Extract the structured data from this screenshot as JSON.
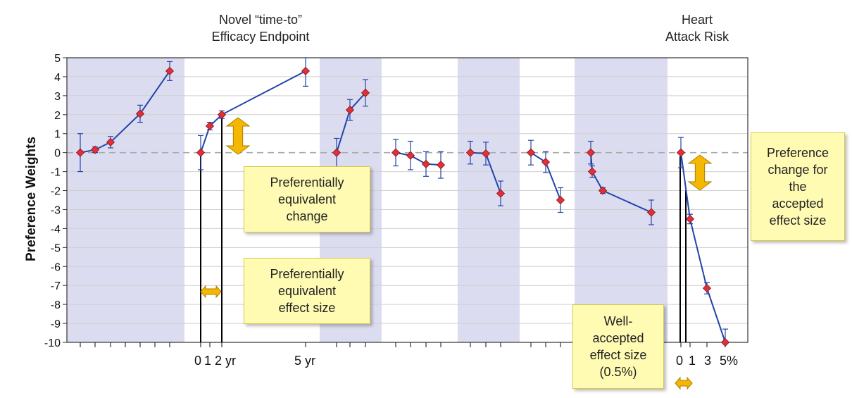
{
  "headers": {
    "efficacy": [
      "Novel “time-to”",
      "Efficacy Endpoint"
    ],
    "heart": [
      "Heart",
      "Attack Risk"
    ]
  },
  "callouts": {
    "equiv_change": [
      "Preferentially",
      "equivalent",
      "change"
    ],
    "equiv_effect": [
      "Preferentially",
      "equivalent",
      "effect size"
    ],
    "well_accepted": [
      "Well-",
      "accepted",
      "effect size",
      "(0.5%)"
    ],
    "pref_change_accepted": [
      "Preference",
      "change for",
      "the",
      "accepted",
      "effect size"
    ]
  },
  "colors": {
    "line": "#2244aa",
    "marker": "#e0303a",
    "band": "#dcdcf0",
    "arrow": "#f5b800",
    "callout_bg": "#fffbb3"
  },
  "chart_data": {
    "type": "line",
    "ylabel": "Preference Weights",
    "ylim": [
      -10,
      5
    ],
    "yticks": [
      5,
      4,
      3,
      2,
      1,
      0,
      -1,
      -2,
      -3,
      -4,
      -5,
      -6,
      -7,
      -8,
      -9,
      -10
    ],
    "grid": true,
    "zero_line": "dashed",
    "xtick_labels": {
      "efficacy": [
        "0",
        "1",
        "2 yr",
        "5 yr"
      ],
      "heart": [
        "0",
        "1",
        "3",
        "5%"
      ]
    },
    "series": [
      {
        "values": [
          0.0,
          0.15,
          0.55,
          2.05,
          4.3
        ],
        "errors": [
          1.0,
          0.15,
          0.3,
          0.45,
          0.5
        ]
      },
      {
        "values": [
          0.0,
          1.4,
          2.0,
          4.3
        ],
        "errors": [
          0.9,
          0.2,
          0.2,
          0.8
        ]
      },
      {
        "values": [
          0.0,
          2.25,
          3.15
        ],
        "errors": [
          0.75,
          0.55,
          0.7
        ]
      },
      {
        "values": [
          0.0,
          -0.15,
          -0.6,
          -0.65
        ],
        "errors": [
          0.7,
          0.75,
          0.65,
          0.7
        ]
      },
      {
        "values": [
          0.0,
          -0.05,
          -2.15
        ],
        "errors": [
          0.6,
          0.6,
          0.65
        ]
      },
      {
        "values": [
          0.0,
          -0.5,
          -2.5
        ],
        "errors": [
          0.65,
          0.55,
          0.65
        ]
      },
      {
        "values": [
          0.0,
          -1.0,
          -2.0,
          -3.15
        ],
        "errors": [
          0.6,
          0.3,
          0.15,
          0.65
        ]
      },
      {
        "values": [
          0.0,
          -3.5,
          -7.15,
          -10.0
        ],
        "errors": [
          0.8,
          0.25,
          0.3,
          0.7
        ]
      }
    ]
  }
}
